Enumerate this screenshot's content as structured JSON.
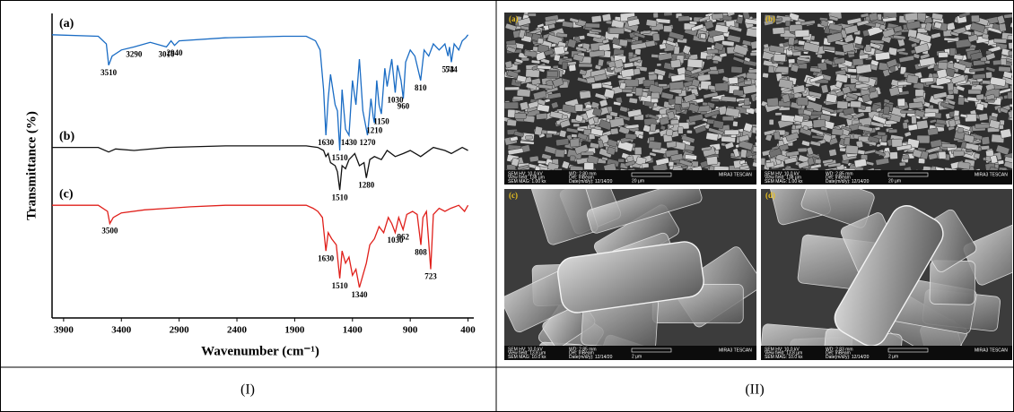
{
  "chart_data": {
    "type": "line",
    "xlabel": "Wavenumber (cm⁻¹)",
    "ylabel": "Transmittance (%)",
    "xlim": [
      4000,
      350
    ],
    "ylim": [
      0,
      100
    ],
    "xticks": [
      3900,
      3400,
      2900,
      2400,
      1900,
      1400,
      900,
      400
    ],
    "series": [
      {
        "name": "(a)",
        "color": "#1a6cc4",
        "x": [
          4000,
          3600,
          3530,
          3510,
          3480,
          3400,
          3290,
          3150,
          3010,
          2970,
          2940,
          2900,
          2500,
          2000,
          1800,
          1720,
          1680,
          1650,
          1630,
          1610,
          1590,
          1550,
          1530,
          1510,
          1490,
          1460,
          1430,
          1400,
          1370,
          1340,
          1310,
          1280,
          1270,
          1240,
          1220,
          1210,
          1190,
          1170,
          1150,
          1120,
          1100,
          1060,
          1030,
          1010,
          980,
          960,
          940,
          900,
          860,
          810,
          780,
          740,
          700,
          650,
          600,
          573,
          560,
          544,
          520,
          480,
          450,
          420,
          400
        ],
        "values": [
          93,
          92.5,
          90,
          83,
          86,
          88,
          89,
          90.5,
          89,
          91,
          89.5,
          91,
          92,
          92.5,
          92.5,
          91,
          88,
          75,
          60,
          72,
          80,
          70,
          68,
          55,
          75,
          62,
          60,
          78,
          70,
          85,
          68,
          62,
          60,
          72,
          66,
          64,
          78,
          70,
          67,
          82,
          76,
          85,
          74,
          83,
          78,
          72,
          84,
          88,
          86,
          78,
          88,
          86,
          90,
          88,
          90,
          86,
          89,
          84,
          90,
          88,
          91,
          92,
          93
        ],
        "annotations": [
          3510,
          3290,
          3010,
          2940,
          1630,
          1510,
          1430,
          1270,
          1210,
          1150,
          1030,
          960,
          810,
          573,
          544
        ]
      },
      {
        "name": "(b)",
        "color": "#111111",
        "x": [
          4000,
          3600,
          3510,
          3450,
          3290,
          3000,
          2500,
          1800,
          1700,
          1650,
          1630,
          1610,
          1590,
          1550,
          1530,
          1510,
          1490,
          1460,
          1430,
          1380,
          1340,
          1300,
          1280,
          1250,
          1210,
          1150,
          1100,
          1030,
          960,
          900,
          810,
          700,
          600,
          544,
          450,
          400
        ],
        "values": [
          56,
          56,
          54.5,
          55.5,
          55,
          56,
          56.5,
          56.5,
          56,
          55,
          53,
          54,
          51,
          50,
          48,
          42,
          50,
          49,
          52,
          54,
          50,
          51,
          46,
          52,
          53,
          52,
          55,
          53,
          54,
          55,
          53,
          56,
          55,
          54,
          56,
          55
        ],
        "annotations": [
          1510,
          1280
        ]
      },
      {
        "name": "(c)",
        "color": "#e0201b",
        "x": [
          4000,
          3600,
          3520,
          3500,
          3470,
          3400,
          3200,
          3000,
          2800,
          2500,
          2000,
          1800,
          1740,
          1700,
          1660,
          1630,
          1610,
          1580,
          1540,
          1510,
          1490,
          1460,
          1430,
          1400,
          1370,
          1340,
          1310,
          1280,
          1250,
          1210,
          1170,
          1130,
          1090,
          1060,
          1030,
          1000,
          962,
          930,
          880,
          840,
          808,
          790,
          760,
          723,
          700,
          650,
          600,
          550,
          480,
          430,
          400
        ],
        "values": [
          37,
          37,
          35,
          31,
          33,
          34.5,
          35.5,
          36,
          36.5,
          37,
          37,
          37,
          36,
          35,
          33,
          22,
          28,
          26,
          24,
          13,
          22,
          18,
          20,
          14,
          16,
          10,
          14,
          18,
          24,
          26,
          30,
          28,
          33,
          31,
          28,
          33,
          29,
          34,
          35,
          34,
          24,
          33,
          35,
          16,
          34,
          36,
          35,
          36,
          37,
          35,
          37
        ],
        "annotations": [
          3500,
          1630,
          1510,
          1340,
          1030,
          962,
          808,
          723
        ]
      }
    ]
  },
  "sem": {
    "images": [
      {
        "label": "(a)",
        "hv": "SEM HV: 10.0 kV",
        "wd": "WD: 2.80 mm",
        "view": "View field: 138 µm",
        "det": "Det: InBeam",
        "mag": "SEM MAG: 1.00 kx",
        "date": "Date(m/d/y): 12/14/20",
        "scale": "20 µm",
        "brand": "MIRA3 TESCAN"
      },
      {
        "label": "(b)",
        "hv": "SEM HV: 10.0 kV",
        "wd": "WD: 2.85 mm",
        "view": "View field: 138 µm",
        "det": "Det: InBeam",
        "mag": "SEM MAG: 1.00 kx",
        "date": "Date(m/d/y): 12/14/20",
        "scale": "20 µm",
        "brand": "MIRA3 TESCAN"
      },
      {
        "label": "(c)",
        "hv": "SEM HV: 10.0 kV",
        "wd": "WD: 2.85 mm",
        "view": "View field: 13.8 µm",
        "det": "Det: InBeam",
        "mag": "SEM MAG: 10.0 kx",
        "date": "Date(m/d/y): 12/14/20",
        "scale": "2 µm",
        "brand": "MIRA3 TESCAN"
      },
      {
        "label": "(d)",
        "hv": "SEM HV: 10.0 kV",
        "wd": "WD: 2.83 mm",
        "view": "View field: 13.8 µm",
        "det": "Det: InBeam",
        "mag": "SEM MAG: 10.0 kx",
        "date": "Date(m/d/y): 12/14/20",
        "scale": "2 µm",
        "brand": "MIRA3 TESCAN"
      }
    ]
  },
  "captions": [
    "(I)",
    "(II)"
  ]
}
